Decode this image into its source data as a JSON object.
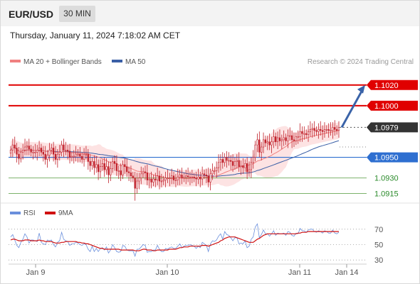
{
  "header": {
    "pair": "EUR/USD",
    "timeframe": "30 MIN",
    "timestamp": "Thursday, January 11, 2024 7:18:02 AM CET"
  },
  "legend": {
    "ma20": "MA 20 + Bollinger Bands",
    "ma50": "MA 50",
    "credit": "Research © 2024 Trading Central",
    "rsi": "RSI",
    "rsi_ma": "9MA"
  },
  "colors": {
    "ma20": "#f08080",
    "ma50": "#3a5fa6",
    "bands_fill": "#fde3e3",
    "resistance": "#e00000",
    "pivot": "#2e6fd0",
    "support": "#2a8a2a",
    "candle": "#c0202a",
    "current": "#333333",
    "arrow": "#3a63a8",
    "rsi": "#6a8fdc",
    "rsi_ma": "#d01010"
  },
  "chart_data": [
    {
      "type": "candlestick",
      "ylim": [
        1.0905,
        1.1035
      ],
      "x_labels": [
        "Jan 9",
        "Jan 10",
        "Jan 11",
        "Jan 14"
      ],
      "levels": [
        {
          "value": 1.102,
          "label": "1.1020",
          "kind": "resistance"
        },
        {
          "value": 1.1,
          "label": "1.1000",
          "kind": "resistance"
        },
        {
          "value": 1.0979,
          "label": "1.0979",
          "kind": "current"
        },
        {
          "value": 1.095,
          "label": "1.0950",
          "kind": "pivot"
        },
        {
          "value": 1.093,
          "label": "1.0930",
          "kind": "support"
        },
        {
          "value": 1.0915,
          "label": "1.0915",
          "kind": "support"
        }
      ],
      "close": [
        1.0957,
        1.0962,
        1.0959,
        1.0953,
        1.0949,
        1.0955,
        1.0957,
        1.096,
        1.0961,
        1.0958,
        1.0955,
        1.0955,
        1.0955,
        1.0957,
        1.0959,
        1.0955,
        1.0953,
        1.0948,
        1.0952,
        1.0957,
        1.0959,
        1.0953,
        1.0948,
        1.0953,
        1.0955,
        1.0962,
        1.0957,
        1.0957,
        1.0956,
        1.095,
        1.0951,
        1.0951,
        1.0953,
        1.0953,
        1.0951,
        1.0948,
        1.0953,
        1.0953,
        1.0946,
        1.0942,
        1.0946,
        1.094,
        1.0943,
        1.0936,
        1.0941,
        1.0944,
        1.0938,
        1.0941,
        1.0933,
        1.0939,
        1.0946,
        1.0944,
        1.0937,
        1.0937,
        1.0933,
        1.0943,
        1.0941,
        1.0936,
        1.0935,
        1.0932,
        1.093,
        1.092,
        1.0927,
        1.093,
        1.0934,
        1.0936,
        1.0935,
        1.0928,
        1.0929,
        1.0926,
        1.0929,
        1.0928,
        1.0932,
        1.0927,
        1.0927,
        1.0928,
        1.093,
        1.093,
        1.093,
        1.0932,
        1.0928,
        1.0928,
        1.0931,
        1.0933,
        1.093,
        1.0931,
        1.0932,
        1.0931,
        1.0931,
        1.0931,
        1.093,
        1.0929,
        1.0931,
        1.0929,
        1.0934,
        1.0933,
        1.0932,
        1.0926,
        1.0934,
        1.0937,
        1.0937,
        1.094,
        1.0945,
        1.0948,
        1.0945,
        1.095,
        1.0947,
        1.0947,
        1.0946,
        1.0942,
        1.0946,
        1.0947,
        1.0941,
        1.0942,
        1.094,
        1.0944,
        1.0936,
        1.0938,
        1.0945,
        1.095,
        1.0962,
        1.0967,
        1.0955,
        1.096,
        1.0967,
        1.0964,
        1.0965,
        1.0962,
        1.0965,
        1.097,
        1.0965,
        1.0969,
        1.0966,
        1.0967,
        1.0969,
        1.0966,
        1.0971,
        1.0971,
        1.0967,
        1.0966,
        1.097,
        1.097,
        1.0975,
        1.0973,
        1.0973,
        1.0972,
        1.0975,
        1.0977,
        1.0978,
        1.0976,
        1.0975,
        1.0977,
        1.0976,
        1.0975,
        1.0977,
        1.0977,
        1.0976,
        1.0976,
        1.0979,
        1.0977,
        1.0976,
        1.0979
      ],
      "forecast": [
        {
          "from": 1.0979,
          "to": 1.102
        }
      ]
    },
    {
      "type": "line",
      "ylim": [
        20,
        80
      ],
      "y_ticks": [
        70,
        50,
        30
      ],
      "series": [
        {
          "name": "RSI",
          "values": [
            60,
            63,
            56,
            49,
            46,
            53,
            57,
            64,
            60,
            52,
            56,
            56,
            55,
            54,
            65,
            53,
            51,
            50,
            56,
            55,
            56,
            50,
            47,
            53,
            55,
            66,
            57,
            55,
            54,
            49,
            51,
            51,
            53,
            52,
            50,
            49,
            51,
            50,
            44,
            41,
            48,
            41,
            45,
            41,
            45,
            46,
            43,
            47,
            39,
            43,
            50,
            46,
            41,
            40,
            41,
            49,
            48,
            43,
            42,
            42,
            42,
            35,
            44,
            44,
            47,
            50,
            49,
            40,
            41,
            41,
            43,
            43,
            49,
            44,
            41,
            41,
            45,
            44,
            46,
            47,
            45,
            45,
            48,
            51,
            46,
            48,
            49,
            49,
            50,
            49,
            48,
            45,
            48,
            46,
            53,
            51,
            49,
            41,
            51,
            55,
            54,
            56,
            61,
            64,
            57,
            67,
            63,
            62,
            59,
            55,
            59,
            59,
            51,
            52,
            51,
            55,
            46,
            48,
            57,
            60,
            73,
            77,
            59,
            63,
            69,
            64,
            64,
            61,
            64,
            68,
            62,
            65,
            64,
            64,
            65,
            62,
            67,
            66,
            62,
            61,
            65,
            64,
            71,
            68,
            68,
            66,
            69,
            70,
            70,
            67,
            66,
            68,
            67,
            65,
            68,
            67,
            65,
            65,
            69,
            65,
            64,
            66
          ]
        },
        {
          "name": "9MA",
          "values": [
            56,
            57,
            57,
            56,
            55,
            55,
            55,
            56,
            56,
            56,
            55,
            55,
            55,
            55,
            56,
            55,
            55,
            54,
            54,
            54,
            54,
            53,
            52,
            52,
            52,
            53,
            53,
            54,
            54,
            54,
            54,
            54,
            54,
            53,
            53,
            52,
            52,
            51,
            51,
            50,
            49,
            48,
            47,
            46,
            45,
            45,
            44,
            44,
            44,
            44,
            44,
            44,
            44,
            44,
            43,
            43,
            43,
            43,
            43,
            43,
            43,
            42,
            42,
            42,
            43,
            44,
            44,
            43,
            43,
            43,
            42,
            42,
            43,
            43,
            43,
            43,
            43,
            43,
            44,
            44,
            44,
            44,
            45,
            46,
            46,
            47,
            47,
            47,
            48,
            48,
            48,
            48,
            48,
            48,
            49,
            49,
            49,
            48,
            49,
            50,
            51,
            52,
            53,
            55,
            56,
            58,
            59,
            60,
            60,
            60,
            60,
            59,
            58,
            57,
            56,
            55,
            54,
            53,
            53,
            53,
            55,
            57,
            58,
            60,
            62,
            63,
            64,
            64,
            64,
            64,
            64,
            64,
            64,
            64,
            64,
            64,
            64,
            64,
            64,
            64,
            64,
            65,
            65,
            66,
            66,
            66,
            67,
            67,
            67,
            67,
            67,
            67,
            67,
            67,
            67,
            67,
            67,
            67,
            67,
            67,
            67,
            67
          ]
        }
      ]
    }
  ]
}
